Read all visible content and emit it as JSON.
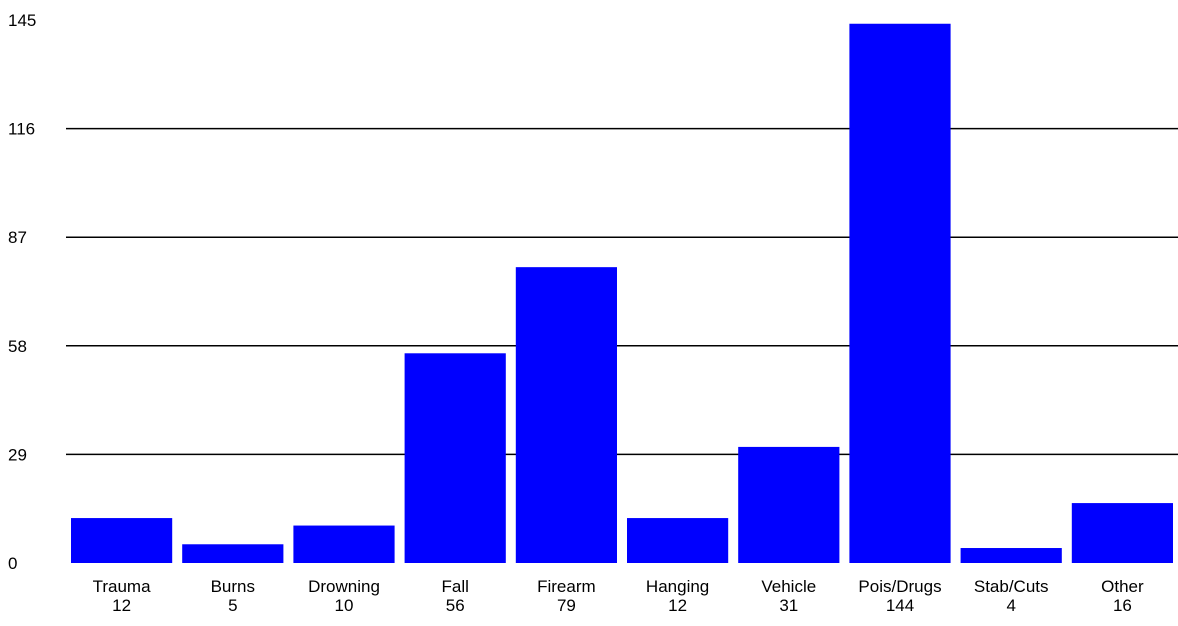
{
  "chart_data": {
    "type": "bar",
    "title": "",
    "xlabel": "",
    "ylabel": "",
    "categories": [
      "Trauma",
      "Burns",
      "Drowning",
      "Fall",
      "Firearm",
      "Hanging",
      "Vehicle",
      "Pois/Drugs",
      "Stab/Cuts",
      "Other"
    ],
    "values": [
      12,
      5,
      10,
      56,
      79,
      12,
      31,
      144,
      4,
      16
    ],
    "value_labels": [
      "12",
      "5",
      "10",
      "56",
      "79",
      "12",
      "31",
      "144",
      "4",
      "16"
    ],
    "ylim": [
      0,
      145
    ],
    "yticks": [
      0,
      29,
      58,
      87,
      116,
      145
    ],
    "ytick_labels": [
      "0",
      "29",
      "58",
      "87",
      "116",
      "145"
    ],
    "grid": true,
    "legend": "none",
    "bar_color": "#0000ff",
    "grid_color": "#000000",
    "background": "#ffffff"
  }
}
